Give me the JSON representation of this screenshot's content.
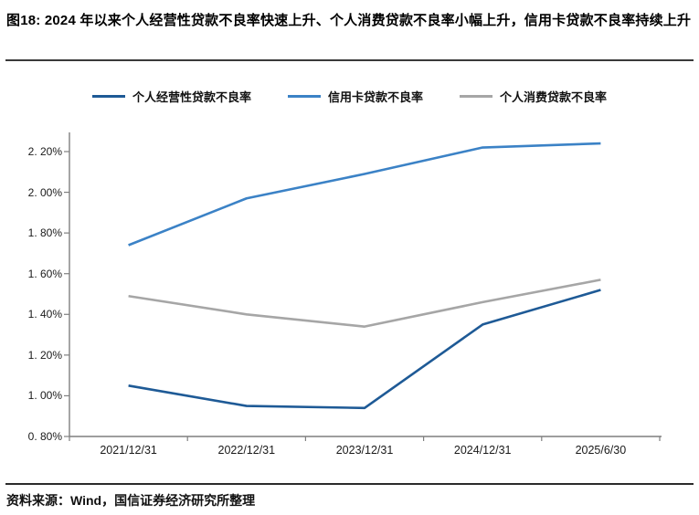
{
  "title": {
    "text": "图18: 2024 年以来个人经营性贷款不良率快速上升、个人消费贷款不良率小幅上升，信用卡贷款不良率持续上升"
  },
  "source": {
    "text": "资料来源：Wind，国信证券经济研究所整理"
  },
  "chart_data": {
    "type": "line",
    "title": "",
    "xlabel": "",
    "ylabel": "",
    "grid": false,
    "legend_position": "top",
    "axis_color": "#7f7f7f",
    "categories": [
      "2021/12/31",
      "2022/12/31",
      "2023/12/31",
      "2024/12/31",
      "2025/6/30"
    ],
    "series": [
      {
        "name": "个人经营性贷款不良率",
        "color": "#1E5A96",
        "values": [
          1.05,
          0.95,
          0.94,
          1.35,
          1.52
        ]
      },
      {
        "name": "信用卡贷款不良率",
        "color": "#3B82C6",
        "values": [
          1.74,
          1.97,
          2.09,
          2.22,
          2.24
        ]
      },
      {
        "name": "个人消费贷款不良率",
        "color": "#A6A6A6",
        "values": [
          1.49,
          1.4,
          1.34,
          1.46,
          1.57
        ]
      }
    ],
    "ylim": [
      0.8,
      2.2
    ],
    "yticks": [
      {
        "value": 2.2,
        "label": "2. 20%"
      },
      {
        "value": 2.0,
        "label": "2. 00%"
      },
      {
        "value": 1.8,
        "label": "1. 80%"
      },
      {
        "value": 1.6,
        "label": "1. 60%"
      },
      {
        "value": 1.4,
        "label": "1. 40%"
      },
      {
        "value": 1.2,
        "label": "1. 20%"
      },
      {
        "value": 1.0,
        "label": "1. 00%"
      },
      {
        "value": 0.8,
        "label": "0. 80%"
      }
    ]
  }
}
